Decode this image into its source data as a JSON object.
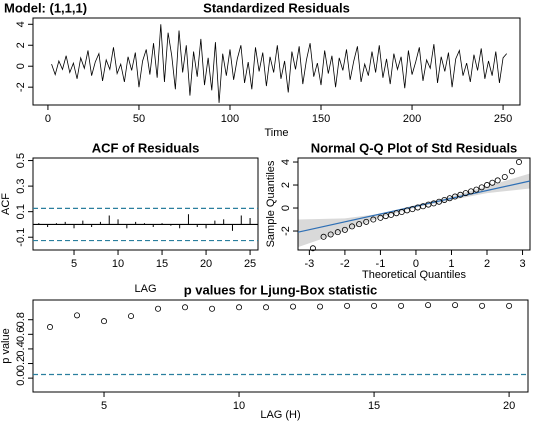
{
  "chart_data": [
    {
      "type": "line",
      "title": "Standardized Residuals",
      "annotation": "Model: (1,1,1)",
      "xlabel": "Time",
      "color": "#000000",
      "x": [
        2,
        4,
        6,
        8,
        10,
        12,
        14,
        16,
        18,
        20,
        22,
        24,
        26,
        28,
        30,
        32,
        34,
        36,
        38,
        40,
        42,
        44,
        46,
        48,
        50,
        52,
        54,
        56,
        58,
        60,
        62,
        64,
        66,
        68,
        70,
        72,
        74,
        76,
        78,
        80,
        82,
        84,
        86,
        88,
        90,
        92,
        94,
        96,
        98,
        100,
        102,
        104,
        106,
        108,
        110,
        112,
        114,
        116,
        118,
        120,
        122,
        124,
        126,
        128,
        130,
        132,
        134,
        136,
        138,
        140,
        142,
        144,
        146,
        148,
        150,
        152,
        154,
        156,
        158,
        160,
        162,
        164,
        166,
        168,
        170,
        172,
        174,
        176,
        178,
        180,
        182,
        184,
        186,
        188,
        190,
        192,
        194,
        196,
        198,
        200,
        202,
        204,
        206,
        208,
        210,
        212,
        214,
        216,
        218,
        220,
        222,
        224,
        226,
        228,
        230,
        232,
        234,
        236,
        238,
        240,
        242,
        244,
        246,
        248,
        250,
        252
      ],
      "values": [
        0.2,
        -0.8,
        0.5,
        -0.3,
        1.0,
        -0.6,
        0.3,
        -1.2,
        0.8,
        -0.2,
        1.5,
        -0.9,
        0.4,
        1.2,
        -1.4,
        0.6,
        -0.3,
        1.8,
        -0.7,
        0.2,
        -1.5,
        0.9,
        -0.4,
        1.3,
        -2.0,
        0.5,
        1.6,
        -0.8,
        2.2,
        -1.1,
        4.0,
        -1.5,
        3.2,
        1.0,
        -2.2,
        3.4,
        -0.6,
        2.0,
        -2.8,
        1.4,
        -1.0,
        2.6,
        -1.8,
        0.8,
        -2.3,
        2.3,
        -3.5,
        1.2,
        -0.9,
        1.6,
        -1.3,
        0.7,
        2.0,
        -1.6,
        0.4,
        -2.2,
        1.8,
        -0.5,
        1.3,
        -1.9,
        0.9,
        -0.6,
        2.0,
        -1.2,
        0.5,
        -2.5,
        1.4,
        -0.3,
        1.9,
        -1.7,
        0.6,
        2.2,
        -1.0,
        0.3,
        -1.8,
        1.5,
        -0.7,
        1.0,
        -2.0,
        0.8,
        -0.4,
        1.6,
        -1.3,
        0.5,
        1.9,
        -1.5,
        0.2,
        -0.9,
        1.4,
        -0.6,
        2.0,
        -1.1,
        0.7,
        -1.7,
        1.2,
        -0.3,
        0.9,
        -2.1,
        1.5,
        -0.8,
        0.4,
        1.8,
        -1.4,
        0.6,
        -0.2,
        2.1,
        -1.6,
        0.9,
        -0.5,
        1.3,
        -2.0,
        0.7,
        1.5,
        -0.9,
        0.3,
        -1.5,
        1.1,
        -0.4,
        1.7,
        -1.2,
        0.5,
        -0.9,
        1.4,
        -1.6,
        0.8,
        1.2
      ],
      "xlim": [
        -8.2,
        259.3
      ],
      "xticks": [
        0,
        50,
        100,
        150,
        200,
        250
      ],
      "ylim": [
        -3.7,
        4.6
      ],
      "yticks": [
        -2,
        0,
        2,
        4
      ]
    },
    {
      "type": "bar",
      "title": "ACF of Residuals",
      "xlabel": "LAG",
      "ylabel": "ACF",
      "color": "#000000",
      "x": [
        1,
        2,
        3,
        4,
        5,
        6,
        7,
        8,
        9,
        10,
        11,
        12,
        13,
        14,
        15,
        16,
        17,
        18,
        19,
        20,
        21,
        22,
        23,
        24,
        25
      ],
      "values": [
        0.01,
        -0.02,
        0.01,
        0.02,
        -0.03,
        0.03,
        -0.02,
        0.02,
        0.07,
        0.04,
        -0.03,
        0.02,
        0.01,
        -0.02,
        0.01,
        -0.01,
        -0.03,
        0.08,
        -0.02,
        -0.03,
        0.03,
        0.04,
        -0.05,
        0.07,
        0.05
      ],
      "hlines": [
        {
          "y": 0,
          "style": "solid",
          "color": "#000000"
        },
        {
          "y": 0.126,
          "style": "dashed",
          "color": "#2a7f9e"
        },
        {
          "y": -0.126,
          "style": "dashed",
          "color": "#2a7f9e"
        }
      ],
      "xlim": [
        0.34,
        25.9
      ],
      "xticks": [
        5,
        10,
        15,
        20,
        25
      ],
      "ylim": [
        -0.2,
        0.52
      ],
      "yticks": [
        -0.1,
        0.1,
        0.3,
        0.5
      ]
    },
    {
      "type": "scatter",
      "title": "Normal Q-Q Plot of Std Residuals",
      "xlabel": "Theoretical Quantiles",
      "ylabel": "Sample Quantiles",
      "color": "#000000",
      "x": [
        -2.9,
        -2.6,
        -2.4,
        -2.2,
        -2.0,
        -1.8,
        -1.6,
        -1.4,
        -1.2,
        -1.0,
        -0.85,
        -0.7,
        -0.55,
        -0.4,
        -0.25,
        -0.1,
        0.05,
        0.2,
        0.35,
        0.5,
        0.65,
        0.8,
        0.95,
        1.1,
        1.25,
        1.4,
        1.55,
        1.7,
        1.85,
        2.0,
        2.15,
        2.3,
        2.5,
        2.7,
        2.9
      ],
      "values": [
        -3.5,
        -2.5,
        -2.3,
        -2.1,
        -1.9,
        -1.6,
        -1.4,
        -1.2,
        -1.0,
        -0.85,
        -0.7,
        -0.6,
        -0.45,
        -0.35,
        -0.2,
        -0.1,
        0.05,
        0.15,
        0.3,
        0.4,
        0.55,
        0.7,
        0.85,
        1.0,
        1.15,
        1.3,
        1.45,
        1.6,
        1.8,
        2.0,
        2.2,
        2.4,
        2.7,
        3.2,
        4.0
      ],
      "band": {
        "x": [
          -3.32,
          -2,
          -1,
          0,
          1,
          2,
          3.21
        ],
        "lower": [
          -3.4,
          -2.0,
          -0.8,
          0.05,
          0.7,
          1.3,
          1.7
        ],
        "upper": [
          -1.0,
          -0.9,
          -0.5,
          0.27,
          1.0,
          1.9,
          3.0
        ],
        "color": "#d9d9d9"
      },
      "reference_line": {
        "x": [
          -3.32,
          3.21
        ],
        "y": [
          -2.1,
          2.35
        ],
        "color": "#2e6fb5"
      },
      "xlim": [
        -3.32,
        3.21
      ],
      "xticks": [
        -3,
        -2,
        -1,
        0,
        1,
        2,
        3
      ],
      "ylim": [
        -3.65,
        4.35
      ],
      "yticks": [
        -2,
        0,
        2,
        4
      ]
    },
    {
      "type": "scatter",
      "title": "p values for Ljung-Box statistic",
      "xlabel": "LAG (H)",
      "ylabel": "p value",
      "color": "#000000",
      "x": [
        3,
        4,
        5,
        6,
        7,
        8,
        9,
        10,
        11,
        12,
        13,
        14,
        15,
        16,
        17,
        18,
        19,
        20
      ],
      "values": [
        0.7,
        0.86,
        0.78,
        0.85,
        0.95,
        0.97,
        0.95,
        0.97,
        0.97,
        0.98,
        0.98,
        0.99,
        0.99,
        0.99,
        1.0,
        1.0,
        0.99,
        0.99
      ],
      "hlines": [
        {
          "y": 0.05,
          "style": "dashed",
          "color": "#2a7f9e"
        }
      ],
      "xlim": [
        2.37,
        20.7
      ],
      "xticks": [
        5,
        10,
        15,
        20
      ],
      "ylim": [
        -0.19,
        1.07
      ],
      "yticks": [
        {
          "value": 0,
          "label": "0.0"
        },
        0.2,
        0.4,
        0.6,
        0.8
      ]
    }
  ]
}
